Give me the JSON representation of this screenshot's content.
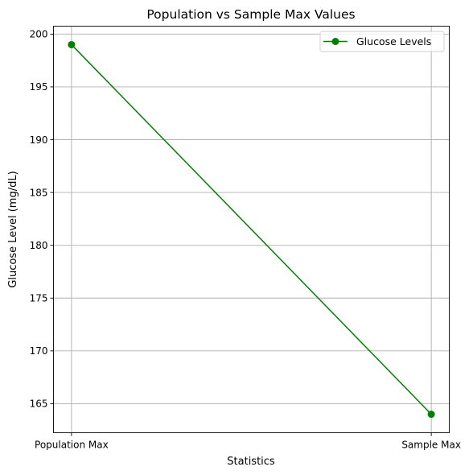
{
  "chart_data": {
    "type": "line",
    "title": "Population vs Sample Max Values",
    "xlabel": "Statistics",
    "ylabel": "Glucose Level (mg/dL)",
    "categories": [
      "Population Max",
      "Sample Max"
    ],
    "series": [
      {
        "name": "Glucose Levels",
        "values": [
          199,
          164
        ],
        "color": "#008000",
        "marker": "circle"
      }
    ],
    "ylim": [
      162.25,
      200.75
    ],
    "yticks": [
      165,
      170,
      175,
      180,
      185,
      190,
      195,
      200
    ],
    "grid": true,
    "legend_position": "top-right"
  }
}
